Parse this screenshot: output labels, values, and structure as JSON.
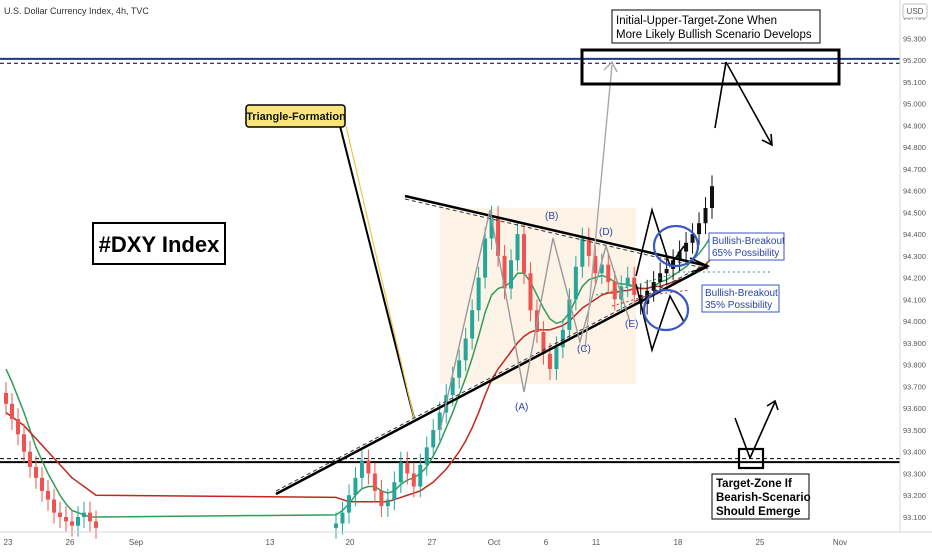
{
  "header": {
    "title": "U.S. Dollar Currency Index, 4h, TVC"
  },
  "axis": {
    "currency_badge": "USD"
  },
  "annotations": {
    "main_title": "#DXY Index",
    "triangle_label": "Triangle-Formation",
    "upper_target_line1": "Initial-Upper-Target-Zone When",
    "upper_target_line2": "More Likely Bullish Scenario Develops",
    "bull_breakout_label1": "Bullish-Breakout",
    "bull_breakout_prob1": "65% Possibility",
    "bull_breakout_label2": "Bullish-Breakout",
    "bull_breakout_prob2": "35% Possibility",
    "lower_target_line1": "Target-Zone If",
    "lower_target_line2": "Bearish-Scenario",
    "lower_target_line3": "Should Emerge",
    "waves": [
      "(A)",
      "(B)",
      "(C)",
      "(D)",
      "(E)"
    ]
  },
  "chart_data": {
    "type": "candlestick",
    "title": "U.S. Dollar Currency Index, 4h, TVC",
    "xlabel": "",
    "ylabel": "",
    "y_unit": "USD",
    "ylim": [
      93.03,
      95.42
    ],
    "y_ticks": [
      93.1,
      93.2,
      93.3,
      93.4,
      93.5,
      93.6,
      93.7,
      93.8,
      93.9,
      94.0,
      94.1,
      94.2,
      94.3,
      94.4,
      94.5,
      94.6,
      94.7,
      94.8,
      94.9,
      95.0,
      95.1,
      95.2,
      95.3,
      95.4
    ],
    "y_tick_labels": [
      "93.100",
      "93.200",
      "93.300",
      "93.400",
      "93.500",
      "93.600",
      "93.700",
      "93.800",
      "93.900",
      "94.000",
      "94.100",
      "94.200",
      "94.300",
      "94.400",
      "94.500",
      "94.600",
      "94.700",
      "94.800",
      "94.900",
      "95.000",
      "95.100",
      "95.200",
      "95.300",
      "95.400"
    ],
    "x_labels": [
      "23",
      "26",
      "Sep",
      "13",
      "20",
      "27",
      "Oct",
      "6",
      "11",
      "18",
      "25",
      "Nov"
    ],
    "x_label_pos": [
      0.0,
      0.06,
      0.2,
      0.7,
      0.89,
      1.0,
      1.1,
      1.17,
      1.25,
      1.45,
      1.65,
      1.85
    ],
    "horizontal_levels": [
      {
        "value": 95.205,
        "style": "solid",
        "color": "#1c3a8c"
      },
      {
        "value": 95.185,
        "style": "dashed",
        "color": "#000000"
      },
      {
        "value": 93.368,
        "style": "dashed",
        "color": "#000000"
      },
      {
        "value": 93.352,
        "style": "solid",
        "color": "#000000"
      }
    ],
    "triangle": {
      "upper_line": [
        [
          0.405,
          94.56
        ],
        [
          0.71,
          94.25
        ]
      ],
      "lower_line": [
        [
          0.275,
          93.17
        ],
        [
          0.71,
          94.25
        ]
      ]
    },
    "candles_close": [
      93.62,
      93.55,
      93.48,
      93.4,
      93.33,
      93.28,
      93.22,
      93.18,
      93.12,
      93.1,
      93.08,
      93.06,
      93.1,
      93.12,
      93.08,
      93.05,
      93.07,
      93.12,
      93.2,
      93.28,
      93.36,
      93.3,
      93.22,
      93.15,
      93.18,
      93.26,
      93.35,
      93.3,
      93.24,
      93.34,
      93.42,
      93.5,
      93.58,
      93.66,
      93.74,
      93.82,
      93.92,
      94.05,
      94.2,
      94.38,
      94.48,
      94.3,
      94.15,
      94.28,
      94.4,
      94.22,
      94.05,
      93.95,
      93.85,
      93.78,
      93.88,
      93.96,
      94.1,
      94.25,
      94.38,
      94.3,
      94.22,
      94.26,
      94.18,
      94.1,
      94.16,
      94.2,
      94.12,
      94.08,
      94.14,
      94.18,
      94.22,
      94.24,
      94.28,
      94.32,
      94.36,
      94.4,
      94.45,
      94.52,
      94.62
    ],
    "series": [
      {
        "name": "",
        "type": "sma",
        "values": [
          93.78,
          93.72,
          93.65,
          93.58,
          93.5,
          93.42,
          93.36,
          93.3,
          93.25,
          93.2,
          93.16,
          93.13,
          93.12,
          93.11,
          93.1,
          93.1,
          93.11,
          93.13,
          93.16,
          93.2,
          93.23,
          93.24,
          93.24,
          93.22,
          93.21,
          93.22,
          93.25,
          93.27,
          93.28,
          93.3,
          93.33,
          93.38,
          93.44,
          93.51,
          93.58,
          93.66,
          93.74,
          93.83,
          93.93,
          94.04,
          94.12,
          94.15,
          94.16,
          94.18,
          94.22,
          94.22,
          94.18,
          94.12,
          94.06,
          94.01,
          93.99,
          94.0,
          94.04,
          94.1,
          94.16,
          94.19,
          94.2,
          94.21,
          94.2,
          94.18,
          94.17,
          94.17,
          94.16,
          94.15,
          94.15,
          94.16,
          94.18,
          94.19,
          94.21,
          94.23,
          94.25,
          94.28,
          94.31,
          94.35,
          94.4
        ],
        "color": "#2e9e57"
      },
      {
        "name": "",
        "type": "sma",
        "values": [
          93.58,
          93.56,
          93.54,
          93.52,
          93.49,
          93.46,
          93.43,
          93.4,
          93.37,
          93.34,
          93.31,
          93.28,
          93.26,
          93.24,
          93.22,
          93.2,
          93.19,
          93.18,
          93.17,
          93.17,
          93.17,
          93.17,
          93.17,
          93.17,
          93.17,
          93.18,
          93.19,
          93.2,
          93.21,
          93.22,
          93.24,
          93.26,
          93.29,
          93.32,
          93.36,
          93.4,
          93.45,
          93.51,
          93.58,
          93.66,
          93.73,
          93.78,
          93.82,
          93.86,
          93.9,
          93.93,
          93.95,
          93.96,
          93.96,
          93.96,
          93.97,
          93.98,
          94.0,
          94.03,
          94.06,
          94.08,
          94.1,
          94.12,
          94.13,
          94.13,
          94.14,
          94.14,
          94.15,
          94.15,
          94.15,
          94.16,
          94.16,
          94.17,
          94.18,
          94.19,
          94.2,
          94.22,
          94.24,
          94.26,
          94.29
        ],
        "color": "#c2271f"
      }
    ]
  }
}
